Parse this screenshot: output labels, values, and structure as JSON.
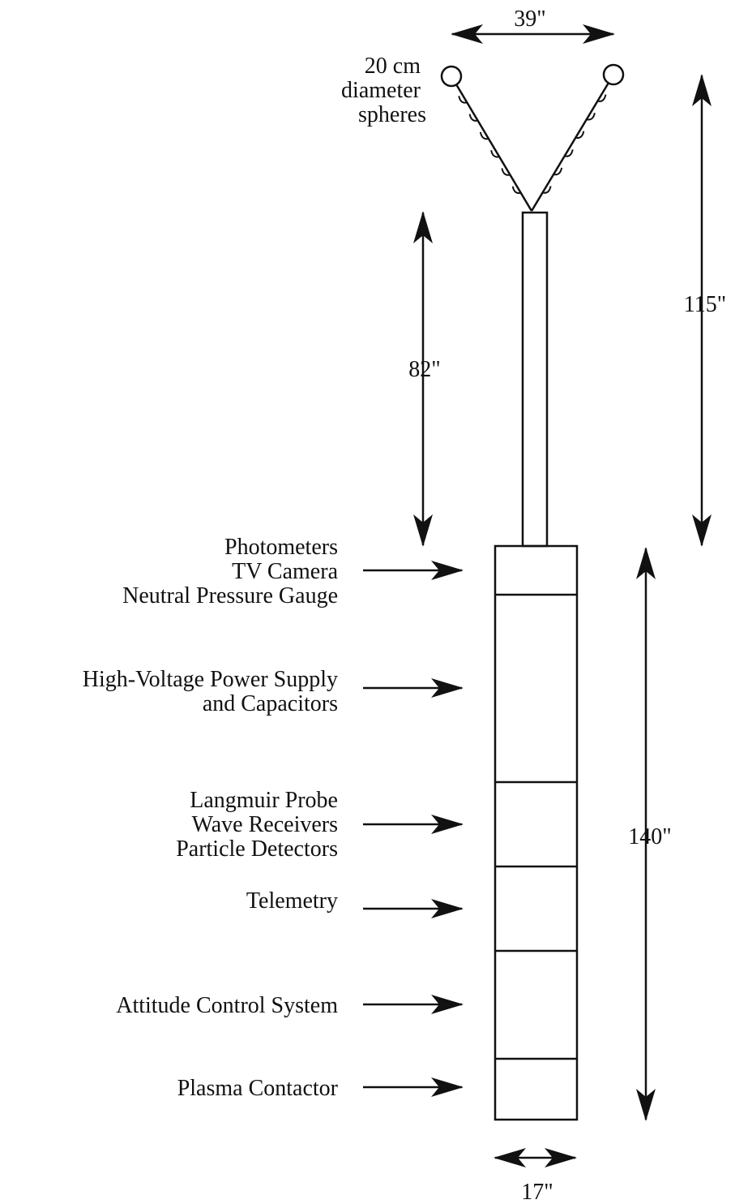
{
  "sphere_label": [
    "20 cm",
    "diameter",
    "spheres"
  ],
  "dimensions": {
    "top_width": "39\"",
    "upper_length": "115\"",
    "boom_length": "82\"",
    "payload_length": "140\"",
    "payload_width": "17\""
  },
  "sections": [
    {
      "lines": [
        "Photometers",
        "TV Camera",
        "Neutral Pressure Gauge"
      ]
    },
    {
      "lines": [
        "High-Voltage Power Supply",
        "and Capacitors"
      ]
    },
    {
      "lines": [
        "Langmuir Probe",
        "Wave Receivers",
        "Particle Detectors"
      ]
    },
    {
      "lines": [
        "Telemetry"
      ]
    },
    {
      "lines": [
        "Attitude Control System"
      ]
    },
    {
      "lines": [
        "Plasma Contactor"
      ]
    }
  ]
}
